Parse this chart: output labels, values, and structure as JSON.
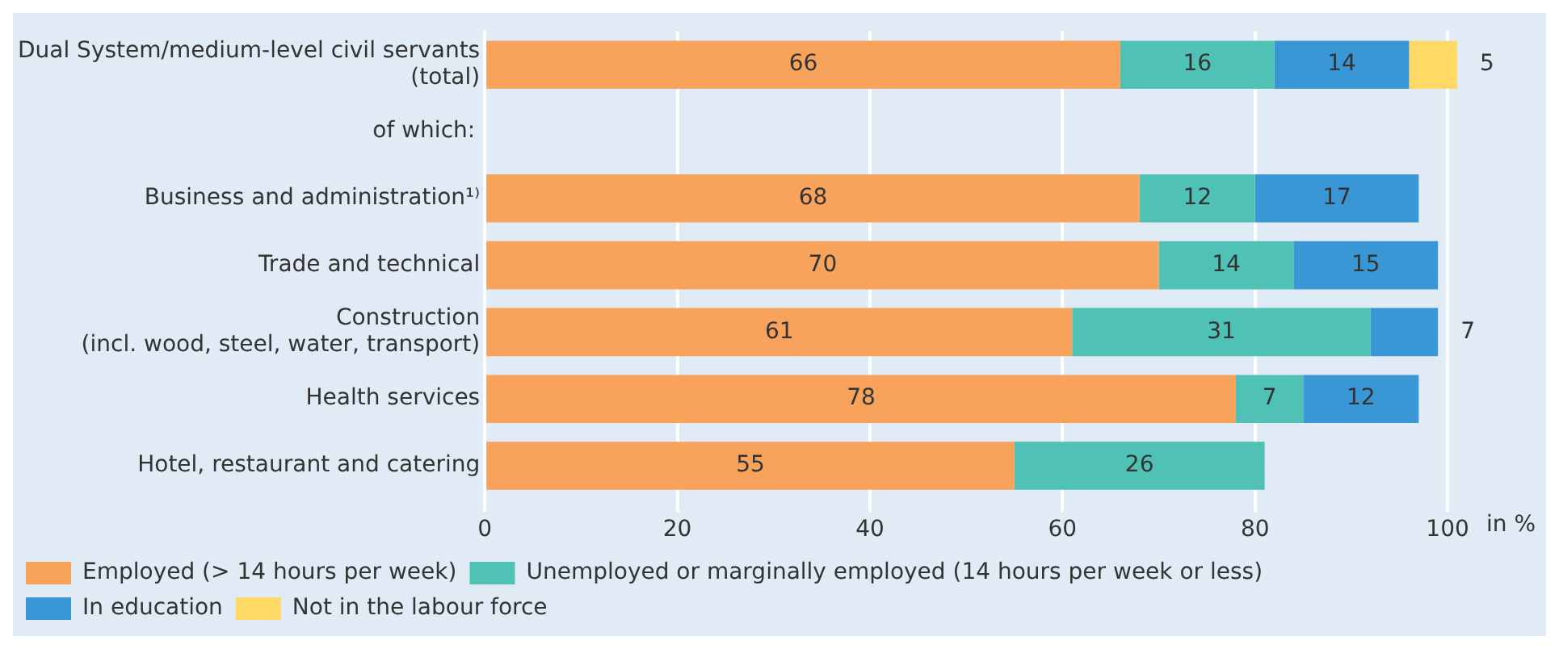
{
  "chart_data": {
    "type": "bar",
    "orientation": "horizontal",
    "stacked": true,
    "categories": [
      "Dual System/medium-level civil servants (total)",
      null,
      "Business and administration¹⁾",
      "Trade and technical",
      "Construction (incl. wood, steel, water, transport)",
      "Health services",
      "Hotel, restaurant and catering"
    ],
    "series": [
      {
        "name": "Employed (> 14 hours per week)",
        "color": "#f7a35c",
        "values": [
          66,
          null,
          68,
          70,
          61,
          78,
          55
        ]
      },
      {
        "name": "Unemployed or marginally employed (14 hours per week or less)",
        "color": "#4fc1b5",
        "values": [
          16,
          null,
          12,
          14,
          31,
          7,
          26
        ]
      },
      {
        "name": "In education",
        "color": "#3a97d6",
        "values": [
          14,
          null,
          17,
          15,
          7,
          12,
          null
        ]
      },
      {
        "name": "Not in the labour force",
        "color": "#ffd966",
        "values": [
          5,
          null,
          null,
          null,
          null,
          null,
          null
        ]
      }
    ],
    "xlim": [
      0,
      101
    ],
    "xticks": [
      0,
      20,
      40,
      60,
      80,
      100
    ],
    "xlabel": "in %",
    "grid": "x",
    "annotations": [
      "of which:"
    ],
    "legend": "bottom",
    "data_labels": true
  }
}
